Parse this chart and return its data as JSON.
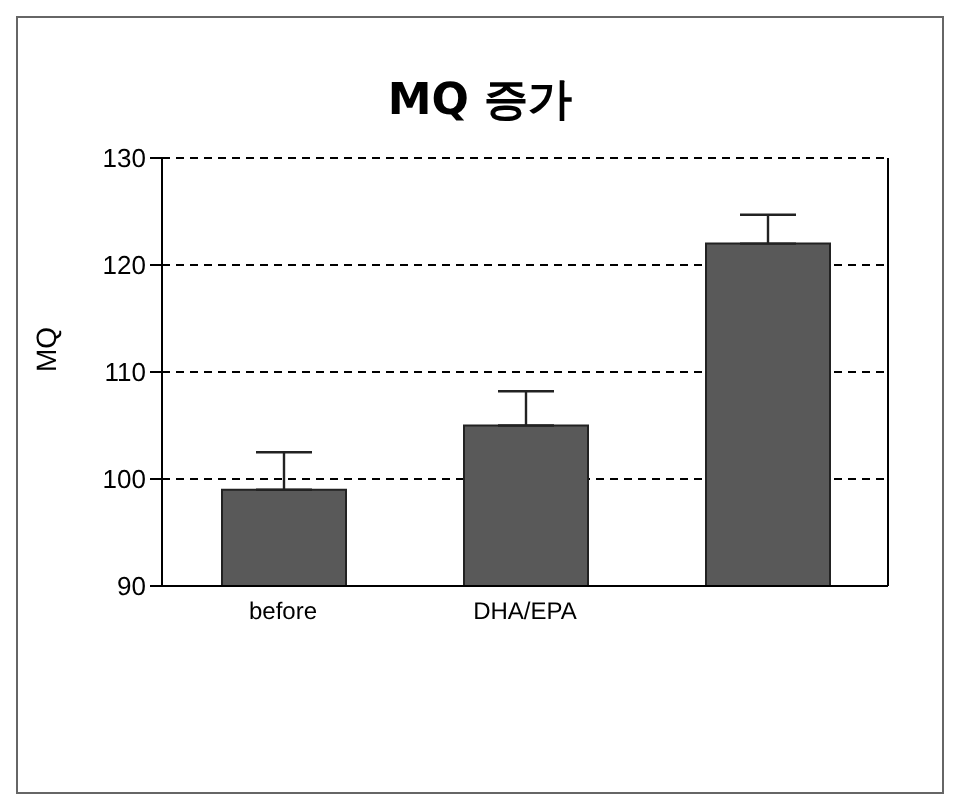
{
  "chart_data": {
    "type": "bar",
    "title": "MQ 증가",
    "ylabel": "MQ",
    "categories": [
      "before",
      "DHA/EPA",
      null
    ],
    "values": [
      99,
      105,
      122
    ],
    "errors": [
      [
        99,
        102.5
      ],
      [
        105,
        108.2
      ],
      [
        122,
        124.7
      ]
    ],
    "color": "#595959",
    "ylim": [
      90,
      130
    ],
    "yticks": [
      90,
      100,
      110,
      120,
      130
    ],
    "grid": "y"
  }
}
